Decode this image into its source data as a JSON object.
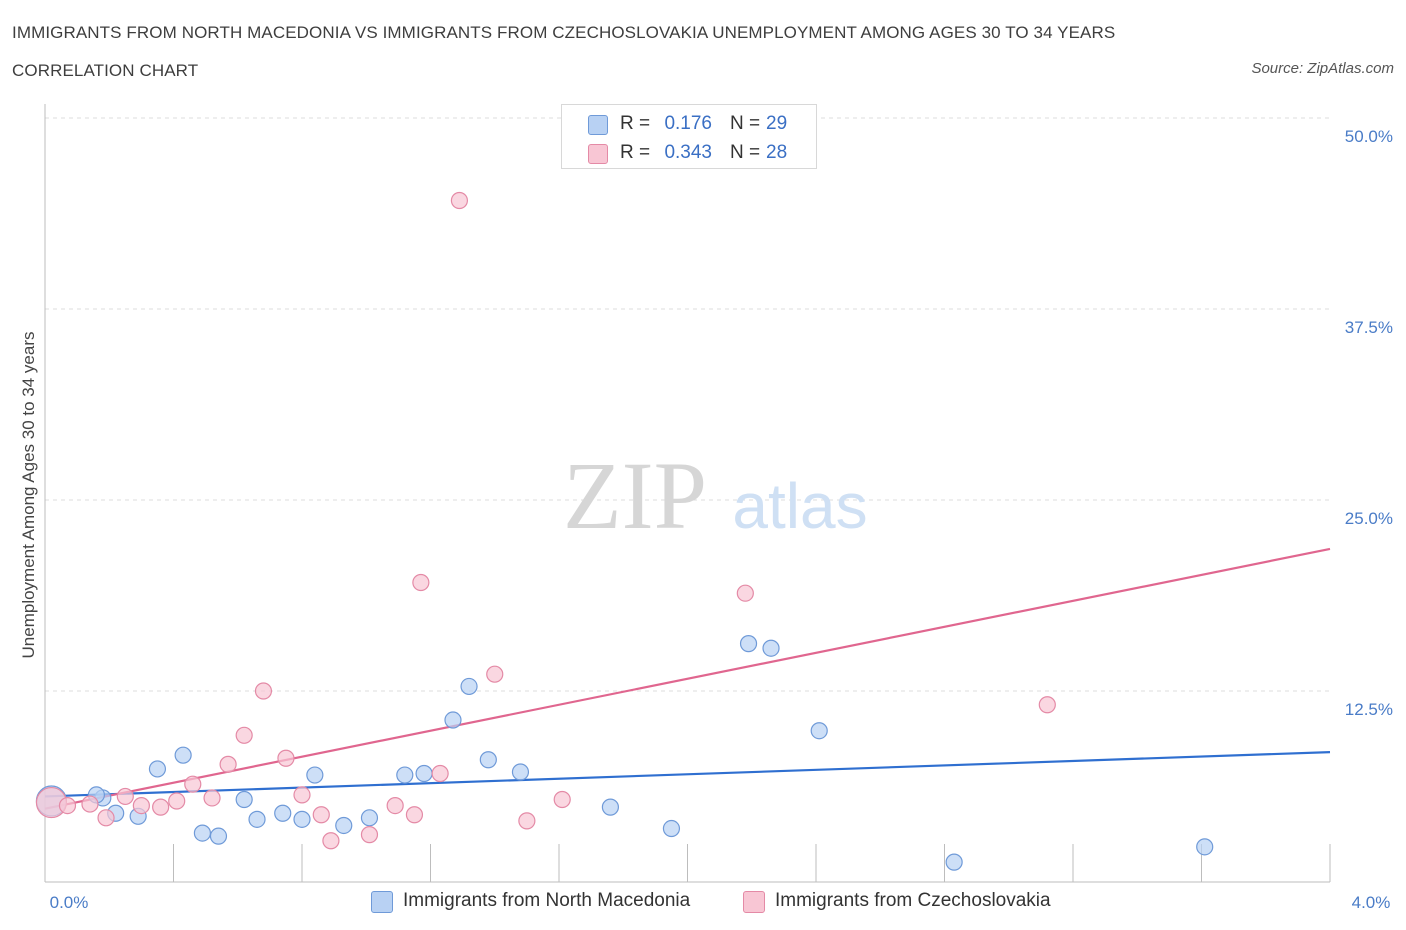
{
  "header": {
    "title": "IMMIGRANTS FROM NORTH MACEDONIA VS IMMIGRANTS FROM CZECHOSLOVAKIA UNEMPLOYMENT AMONG AGES 30 TO 34 YEARS CORRELATION CHART",
    "source": "Source: ZipAtlas.com"
  },
  "watermark": {
    "zip": "ZIP",
    "atlas": "atlas"
  },
  "legend": {
    "rows": [
      {
        "r_label": "R =",
        "r_value": "0.176",
        "n_label": "N =",
        "n_value": "29"
      },
      {
        "r_label": "R =",
        "r_value": "0.343",
        "n_label": "N =",
        "n_value": "28"
      }
    ]
  },
  "colors": {
    "blue_fill": "#b8d1f3",
    "blue_stroke": "#6f9ad8",
    "blue_line": "#2f6fd0",
    "pink_fill": "#f8c6d4",
    "pink_stroke": "#e48aa6",
    "pink_line": "#e0668f",
    "grid": "#dcdcdc",
    "axis_text": "#4a7cc7"
  },
  "chart_data": {
    "type": "scatter",
    "title": "IMMIGRANTS FROM NORTH MACEDONIA VS IMMIGRANTS FROM CZECHOSLOVAKIA UNEMPLOYMENT AMONG AGES 30 TO 34 YEARS CORRELATION CHART",
    "xlabel": "",
    "ylabel": "Unemployment Among Ages 30 to 34 years",
    "xlim": [
      0,
      4.0
    ],
    "ylim": [
      0,
      50.0
    ],
    "x_tick_labels": [
      "0.0%",
      "4.0%"
    ],
    "y_ticks": [
      12.5,
      25.0,
      37.5,
      50.0
    ],
    "y_tick_labels": [
      "12.5%",
      "25.0%",
      "37.5%",
      "50.0%"
    ],
    "grid": true,
    "legend_position": "top-center",
    "series": [
      {
        "name": "Immigrants from North Macedonia",
        "color": "blue",
        "r": 0.176,
        "n": 29,
        "trend": {
          "x": [
            0.0,
            4.0
          ],
          "y": [
            5.6,
            8.5
          ]
        },
        "points": [
          {
            "x": 0.02,
            "y": 5.3,
            "big": true
          },
          {
            "x": 0.18,
            "y": 5.5
          },
          {
            "x": 0.16,
            "y": 5.7
          },
          {
            "x": 0.22,
            "y": 4.5
          },
          {
            "x": 0.29,
            "y": 4.3
          },
          {
            "x": 0.35,
            "y": 7.4
          },
          {
            "x": 0.43,
            "y": 8.3
          },
          {
            "x": 0.49,
            "y": 3.2
          },
          {
            "x": 0.54,
            "y": 3.0
          },
          {
            "x": 0.62,
            "y": 5.4
          },
          {
            "x": 0.66,
            "y": 4.1
          },
          {
            "x": 0.74,
            "y": 4.5
          },
          {
            "x": 0.8,
            "y": 4.1
          },
          {
            "x": 0.84,
            "y": 7.0
          },
          {
            "x": 0.93,
            "y": 3.7
          },
          {
            "x": 1.01,
            "y": 4.2
          },
          {
            "x": 1.12,
            "y": 7.0
          },
          {
            "x": 1.18,
            "y": 7.1
          },
          {
            "x": 1.27,
            "y": 10.6
          },
          {
            "x": 1.32,
            "y": 12.8
          },
          {
            "x": 1.38,
            "y": 8.0
          },
          {
            "x": 1.48,
            "y": 7.2
          },
          {
            "x": 1.76,
            "y": 4.9
          },
          {
            "x": 1.95,
            "y": 3.5
          },
          {
            "x": 2.19,
            "y": 15.6
          },
          {
            "x": 2.26,
            "y": 15.3
          },
          {
            "x": 2.41,
            "y": 9.9
          },
          {
            "x": 2.83,
            "y": 1.3
          },
          {
            "x": 3.61,
            "y": 2.3
          }
        ]
      },
      {
        "name": "Immigrants from Czechoslovakia",
        "color": "pink",
        "r": 0.343,
        "n": 28,
        "trend": {
          "x": [
            0.0,
            4.0
          ],
          "y": [
            4.8,
            21.8
          ]
        },
        "points": [
          {
            "x": 0.02,
            "y": 5.2,
            "big": true
          },
          {
            "x": 0.07,
            "y": 5.0
          },
          {
            "x": 0.14,
            "y": 5.1
          },
          {
            "x": 0.19,
            "y": 4.2
          },
          {
            "x": 0.25,
            "y": 5.6
          },
          {
            "x": 0.3,
            "y": 5.0
          },
          {
            "x": 0.36,
            "y": 4.9
          },
          {
            "x": 0.41,
            "y": 5.3
          },
          {
            "x": 0.46,
            "y": 6.4
          },
          {
            "x": 0.52,
            "y": 5.5
          },
          {
            "x": 0.57,
            "y": 7.7
          },
          {
            "x": 0.62,
            "y": 9.6
          },
          {
            "x": 0.68,
            "y": 12.5
          },
          {
            "x": 0.75,
            "y": 8.1
          },
          {
            "x": 0.8,
            "y": 5.7
          },
          {
            "x": 0.86,
            "y": 4.4
          },
          {
            "x": 0.89,
            "y": 2.7
          },
          {
            "x": 1.01,
            "y": 3.1
          },
          {
            "x": 1.09,
            "y": 5.0
          },
          {
            "x": 1.15,
            "y": 4.4
          },
          {
            "x": 1.17,
            "y": 19.6
          },
          {
            "x": 1.23,
            "y": 7.1
          },
          {
            "x": 1.29,
            "y": 44.6
          },
          {
            "x": 1.4,
            "y": 13.6
          },
          {
            "x": 1.5,
            "y": 4.0
          },
          {
            "x": 1.61,
            "y": 5.4
          },
          {
            "x": 2.18,
            "y": 18.9
          },
          {
            "x": 3.12,
            "y": 11.6
          }
        ]
      }
    ]
  }
}
